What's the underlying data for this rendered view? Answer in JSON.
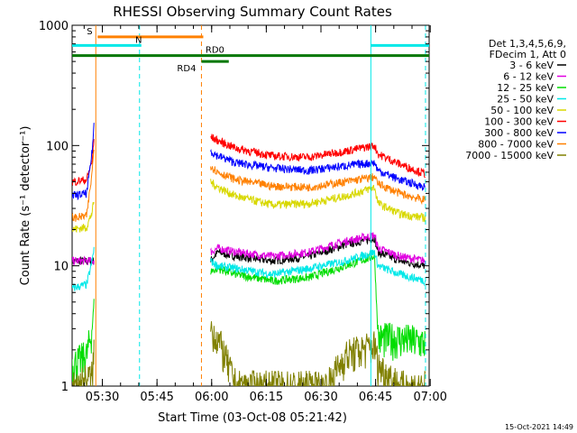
{
  "chart_data": {
    "type": "line",
    "title": "RHESSI Observing Summary Count Rates",
    "xlabel": "Start Time (03-Oct-08 05:21:42)",
    "ylabel": "Count Rate (s⁻¹ detector⁻¹)",
    "x_unit": "minutes since 05:21:42",
    "xlim": [
      0,
      98
    ],
    "ylim": [
      1,
      1000
    ],
    "y_scale": "log",
    "x_ticks": [
      {
        "x": 8.3,
        "label": "05:30"
      },
      {
        "x": 23.3,
        "label": "05:45"
      },
      {
        "x": 38.3,
        "label": "06:00"
      },
      {
        "x": 53.3,
        "label": "06:15"
      },
      {
        "x": 68.3,
        "label": "06:30"
      },
      {
        "x": 83.3,
        "label": "06:45"
      },
      {
        "x": 98.3,
        "label": "07:00"
      }
    ],
    "y_ticks": [
      {
        "y": 1,
        "label": "1"
      },
      {
        "y": 10,
        "label": "10"
      },
      {
        "y": 100,
        "label": "100"
      },
      {
        "y": 1000,
        "label": "1000"
      }
    ],
    "legend": {
      "header": [
        "Det 1,3,4,5,6,9,",
        "FDecim 1, Att 0"
      ],
      "placement": "right"
    },
    "series": [
      {
        "name": "3 - 6 keV",
        "color": "#000000",
        "segments": [
          [
            [
              0,
              11
            ],
            [
              5,
              11
            ],
            [
              6,
              11
            ]
          ],
          [
            [
              38,
              11
            ],
            [
              40,
              13
            ],
            [
              45,
              12
            ],
            [
              55,
              11
            ],
            [
              65,
              12
            ],
            [
              75,
              15
            ],
            [
              83,
              17
            ],
            [
              84,
              13
            ],
            [
              90,
              11
            ],
            [
              97,
              10
            ]
          ]
        ]
      },
      {
        "name": "6 - 12 keV",
        "color": "#e000e0",
        "segments": [
          [
            [
              0,
              11
            ],
            [
              5,
              11
            ],
            [
              6,
              11
            ]
          ],
          [
            [
              38,
              13
            ],
            [
              40,
              14
            ],
            [
              45,
              13
            ],
            [
              55,
              12
            ],
            [
              65,
              13
            ],
            [
              75,
              16
            ],
            [
              83,
              18
            ],
            [
              84,
              14
            ],
            [
              90,
              12
            ],
            [
              97,
              11
            ]
          ]
        ]
      },
      {
        "name": "12 - 25 keV",
        "color": "#00dd00",
        "segments": [
          [
            [
              0,
              1.5
            ],
            [
              4,
              1.8
            ],
            [
              5.5,
              3
            ],
            [
              6,
              5
            ]
          ],
          [
            [
              38,
              9
            ],
            [
              40,
              9.5
            ],
            [
              45,
              8.5
            ],
            [
              55,
              7.5
            ],
            [
              65,
              8
            ],
            [
              75,
              10
            ],
            [
              83,
              12
            ],
            [
              84,
              2.5
            ],
            [
              90,
              2.5
            ],
            [
              97,
              2.3
            ]
          ]
        ]
      },
      {
        "name": "25 - 50 keV",
        "color": "#00e8e8",
        "segments": [
          [
            [
              0,
              6.5
            ],
            [
              4,
              7
            ],
            [
              5.5,
              11
            ],
            [
              6,
              14
            ]
          ],
          [
            [
              38,
              11
            ],
            [
              40,
              10
            ],
            [
              45,
              9.5
            ],
            [
              55,
              8.5
            ],
            [
              65,
              9.5
            ],
            [
              75,
              11
            ],
            [
              83,
              13
            ],
            [
              84,
              10
            ],
            [
              90,
              8.5
            ],
            [
              97,
              7.5
            ]
          ]
        ]
      },
      {
        "name": "50 - 100 keV",
        "color": "#d8d800",
        "segments": [
          [
            [
              0,
              20
            ],
            [
              4,
              21
            ],
            [
              5.5,
              28
            ],
            [
              6,
              35
            ]
          ],
          [
            [
              38,
              50
            ],
            [
              40,
              45
            ],
            [
              45,
              38
            ],
            [
              55,
              32
            ],
            [
              65,
              33
            ],
            [
              75,
              38
            ],
            [
              83,
              45
            ],
            [
              84,
              33
            ],
            [
              90,
              27
            ],
            [
              97,
              25
            ]
          ]
        ]
      },
      {
        "name": "100 - 300 keV",
        "color": "#ff0000",
        "segments": [
          [
            [
              0,
              50
            ],
            [
              4,
              52
            ],
            [
              5.5,
              75
            ],
            [
              6,
              110
            ]
          ],
          [
            [
              38,
              118
            ],
            [
              40,
              110
            ],
            [
              45,
              95
            ],
            [
              55,
              82
            ],
            [
              65,
              80
            ],
            [
              75,
              90
            ],
            [
              83,
              100
            ],
            [
              84,
              85
            ],
            [
              90,
              70
            ],
            [
              97,
              58
            ]
          ]
        ]
      },
      {
        "name": "300 - 800 keV",
        "color": "#0000ff",
        "segments": [
          [
            [
              0,
              38
            ],
            [
              4,
              40
            ],
            [
              5.5,
              90
            ],
            [
              6,
              150
            ]
          ],
          [
            [
              38,
              90
            ],
            [
              40,
              82
            ],
            [
              45,
              72
            ],
            [
              55,
              65
            ],
            [
              65,
              62
            ],
            [
              75,
              68
            ],
            [
              83,
              72
            ],
            [
              84,
              62
            ],
            [
              90,
              52
            ],
            [
              97,
              45
            ]
          ]
        ]
      },
      {
        "name": "800 - 7000 keV",
        "color": "#ff8000",
        "segments": [
          [
            [
              0,
              25
            ],
            [
              4,
              26
            ],
            [
              5.5,
              60
            ],
            [
              6,
              100
            ]
          ],
          [
            [
              38,
              68
            ],
            [
              40,
              60
            ],
            [
              45,
              52
            ],
            [
              55,
              46
            ],
            [
              65,
              45
            ],
            [
              75,
              50
            ],
            [
              83,
              55
            ],
            [
              84,
              48
            ],
            [
              90,
              40
            ],
            [
              97,
              35
            ]
          ]
        ]
      },
      {
        "name": "7000 - 15000 keV",
        "color": "#808000",
        "segments": [
          [
            [
              0,
              1
            ],
            [
              5.5,
              1.2
            ],
            [
              6,
              2
            ]
          ],
          [
            [
              38,
              3
            ],
            [
              40,
              2.5
            ],
            [
              45,
              1
            ],
            [
              60,
              1
            ],
            [
              70,
              1
            ],
            [
              75,
              1.8
            ],
            [
              83,
              2.2
            ],
            [
              84,
              1.5
            ],
            [
              90,
              1
            ],
            [
              97,
              1
            ]
          ]
        ]
      }
    ],
    "indicators": [
      {
        "label": "S",
        "color": "#ff8000",
        "y": 800,
        "x": [
          7.0,
          36.0
        ]
      },
      {
        "label": "N",
        "color": "#00e8e8",
        "y": 680,
        "x": [
          0,
          19.0
        ]
      },
      {
        "label": "N",
        "color": "#00e8e8",
        "y": 680,
        "x": [
          82.0,
          98
        ]
      },
      {
        "label": "RD0",
        "color": "#007700",
        "y": 560,
        "x": [
          0,
          98
        ]
      },
      {
        "label": "RD4",
        "color": "#007700",
        "y": 500,
        "x": [
          35.5,
          43.0
        ]
      }
    ],
    "vertical_markers": [
      {
        "x": 6.5,
        "color": "#ff8000",
        "style": "solid"
      },
      {
        "x": 18.5,
        "color": "#00e8e8",
        "style": "dashed"
      },
      {
        "x": 35.5,
        "color": "#ff8000",
        "style": "dashed"
      },
      {
        "x": 82.0,
        "color": "#00e8e8",
        "style": "solid"
      },
      {
        "x": 97.0,
        "color": "#00e8e8",
        "style": "dashed"
      }
    ]
  },
  "timestamp": "15-Oct-2021 14:49"
}
